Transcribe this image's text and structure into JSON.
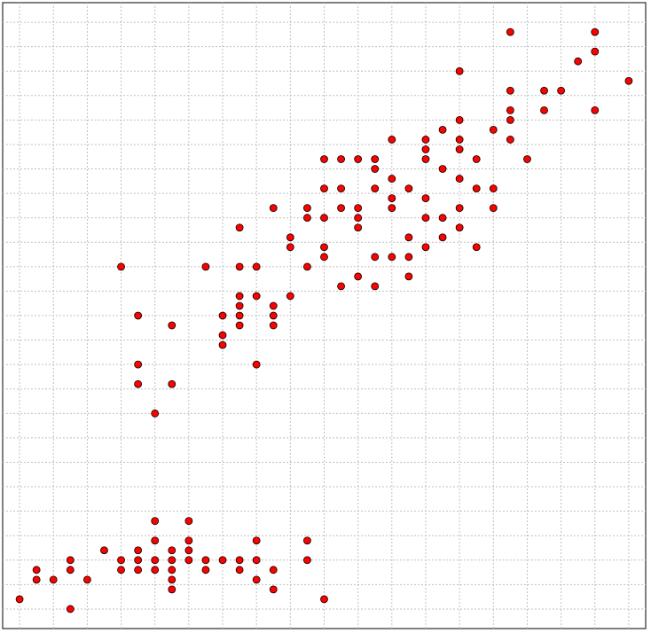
{
  "chart_data": {
    "type": "scatter",
    "title": "",
    "xlabel": "",
    "ylabel": "",
    "xlim": [
      4.2,
      8.0
    ],
    "ylim": [
      0.8,
      7.2
    ],
    "grid": true,
    "x_gridlines": [
      4.3,
      4.5,
      4.7,
      4.9,
      5.1,
      5.3,
      5.5,
      5.7,
      5.9,
      6.1,
      6.3,
      6.5,
      6.7,
      6.9,
      7.1,
      7.3,
      7.5,
      7.7,
      7.9
    ],
    "y_gridlines": [
      1.0,
      1.25,
      1.5,
      1.75,
      2.0,
      2.25,
      2.5,
      2.75,
      3.0,
      3.25,
      3.5,
      3.75,
      4.0,
      4.25,
      4.5,
      4.75,
      5.0,
      5.25,
      5.5,
      5.75,
      6.0,
      6.25,
      6.5,
      6.75,
      7.0
    ],
    "point_color": "#ff0000",
    "point_edge_color": "#000000",
    "series": [
      {
        "points": [
          [
            4.3,
            1.1
          ],
          [
            4.4,
            1.3
          ],
          [
            4.4,
            1.4
          ],
          [
            4.5,
            1.3
          ],
          [
            4.6,
            1.0
          ],
          [
            4.6,
            1.4
          ],
          [
            4.6,
            1.5
          ],
          [
            4.7,
            1.3
          ],
          [
            4.8,
            1.6
          ],
          [
            4.9,
            1.4
          ],
          [
            4.9,
            1.5
          ],
          [
            5.0,
            1.4
          ],
          [
            5.0,
            1.6
          ],
          [
            5.0,
            1.5
          ],
          [
            5.1,
            1.4
          ],
          [
            5.1,
            1.5
          ],
          [
            5.1,
            1.7
          ],
          [
            5.1,
            1.9
          ],
          [
            5.2,
            1.2
          ],
          [
            5.2,
            1.3
          ],
          [
            5.2,
            1.4
          ],
          [
            5.2,
            1.5
          ],
          [
            5.2,
            1.6
          ],
          [
            5.3,
            1.6
          ],
          [
            5.3,
            1.5
          ],
          [
            5.3,
            1.7
          ],
          [
            5.3,
            1.9
          ],
          [
            5.4,
            1.5
          ],
          [
            5.4,
            1.4
          ],
          [
            5.5,
            1.5
          ],
          [
            5.6,
            1.4
          ],
          [
            5.6,
            1.5
          ],
          [
            5.7,
            1.5
          ],
          [
            5.7,
            1.7
          ],
          [
            5.7,
            1.3
          ],
          [
            5.8,
            1.2
          ],
          [
            5.8,
            1.4
          ],
          [
            6.0,
            1.5
          ],
          [
            6.0,
            1.7
          ],
          [
            6.1,
            1.1
          ],
          [
            4.9,
            4.5
          ],
          [
            5.0,
            3.3
          ],
          [
            5.0,
            3.5
          ],
          [
            5.1,
            3.0
          ],
          [
            5.2,
            3.9
          ],
          [
            5.4,
            4.5
          ],
          [
            5.5,
            4.0
          ],
          [
            5.5,
            3.8
          ],
          [
            5.5,
            3.7
          ],
          [
            5.6,
            4.5
          ],
          [
            5.6,
            4.1
          ],
          [
            5.6,
            4.2
          ],
          [
            5.6,
            4.0
          ],
          [
            5.6,
            3.9
          ],
          [
            5.7,
            4.5
          ],
          [
            5.7,
            4.2
          ],
          [
            5.7,
            3.5
          ],
          [
            5.8,
            4.1
          ],
          [
            5.8,
            4.0
          ],
          [
            5.8,
            3.9
          ],
          [
            5.8,
            5.1
          ],
          [
            5.9,
            4.8
          ],
          [
            5.9,
            4.2
          ],
          [
            6.0,
            4.5
          ],
          [
            6.0,
            5.1
          ],
          [
            6.0,
            5.0
          ],
          [
            6.1,
            4.7
          ],
          [
            6.1,
            4.6
          ],
          [
            6.2,
            5.1
          ],
          [
            6.2,
            4.3
          ],
          [
            6.3,
            5.1
          ],
          [
            6.3,
            4.9
          ],
          [
            6.3,
            5.0
          ],
          [
            6.4,
            5.3
          ],
          [
            6.4,
            5.5
          ],
          [
            6.4,
            4.3
          ],
          [
            6.5,
            5.1
          ],
          [
            6.5,
            4.6
          ],
          [
            6.5,
            5.2
          ],
          [
            6.5,
            5.8
          ],
          [
            6.6,
            4.4
          ],
          [
            6.6,
            4.6
          ],
          [
            6.7,
            4.7
          ],
          [
            6.7,
            5.0
          ],
          [
            6.7,
            5.6
          ],
          [
            6.7,
            5.7
          ],
          [
            6.7,
            5.8
          ],
          [
            6.7,
            5.2
          ],
          [
            6.8,
            4.8
          ],
          [
            6.8,
            5.5
          ],
          [
            6.8,
            5.9
          ],
          [
            6.9,
            4.9
          ],
          [
            6.9,
            5.1
          ],
          [
            6.9,
            5.4
          ],
          [
            6.9,
            5.7
          ],
          [
            7.0,
            4.7
          ],
          [
            7.1,
            5.9
          ],
          [
            7.2,
            5.8
          ],
          [
            7.2,
            6.0
          ],
          [
            7.2,
            6.1
          ],
          [
            7.3,
            5.6
          ],
          [
            7.4,
            6.1
          ],
          [
            7.6,
            6.6
          ],
          [
            7.7,
            6.1
          ],
          [
            7.7,
            6.7
          ],
          [
            7.9,
            6.4
          ],
          [
            7.0,
            5.3
          ],
          [
            7.1,
            5.1
          ],
          [
            6.3,
            4.4
          ],
          [
            6.1,
            5.3
          ],
          [
            6.4,
            4.6
          ],
          [
            5.0,
            4.0
          ],
          [
            6.9,
            6.0
          ],
          [
            7.5,
            6.3
          ],
          [
            7.2,
            6.3
          ],
          [
            7.1,
            5.3
          ],
          [
            6.2,
            5.6
          ],
          [
            6.4,
            5.6
          ],
          [
            6.6,
            4.8
          ],
          [
            7.0,
            5.6
          ],
          [
            6.2,
            5.3
          ],
          [
            6.8,
            5.0
          ],
          [
            5.6,
            4.9
          ],
          [
            5.9,
            4.7
          ],
          [
            6.1,
            5.0
          ],
          [
            6.9,
            6.5
          ],
          [
            7.7,
            6.9
          ],
          [
            6.3,
            5.6
          ],
          [
            6.6,
            5.3
          ],
          [
            5.2,
            3.3
          ],
          [
            6.1,
            5.6
          ],
          [
            7.4,
            6.3
          ],
          [
            6.5,
            5.4
          ],
          [
            6.9,
            5.8
          ],
          [
            7.2,
            6.9
          ]
        ]
      }
    ]
  }
}
